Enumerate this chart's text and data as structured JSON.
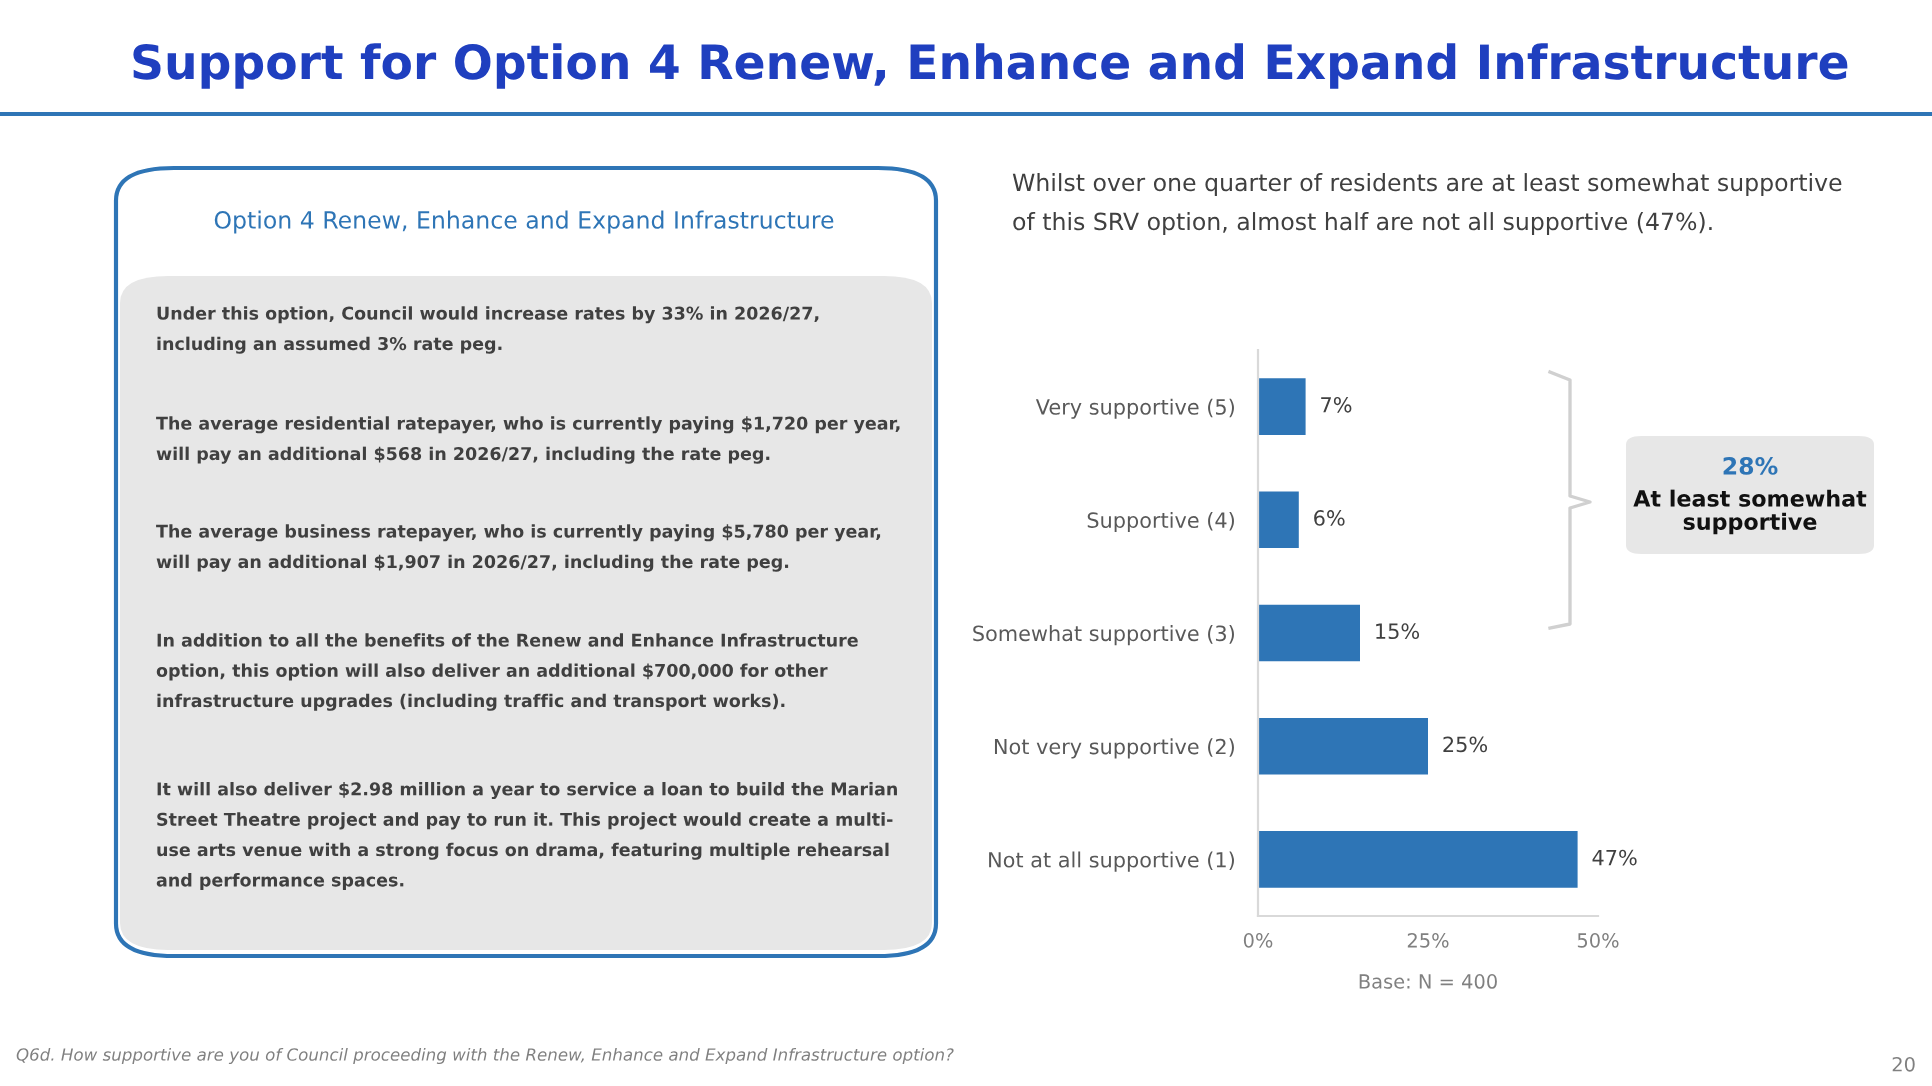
{
  "chart_data": {
    "type": "bar",
    "orientation": "horizontal",
    "title": "Support for Option 4 Renew, Enhance and Expand Infrastructure",
    "subtitle": "Whilst over one quarter of residents are at least somewhat supportive\nof this SRV option, almost half are not all supportive (47%).",
    "xlabel": "Base: N = 400",
    "categories": [
      "Very supportive (5)",
      "Supportive (4)",
      "Somewhat supportive (3)",
      "Not very supportive (2)",
      "Not at all supportive (1)"
    ],
    "values": [
      7,
      6,
      15,
      25,
      47
    ],
    "value_labels": [
      "7%",
      "6%",
      "15%",
      "25%",
      "47%"
    ],
    "color": "#2e75b6",
    "xlim": [
      0,
      50
    ],
    "xticks": [
      {
        "value": 0,
        "label": "0%"
      },
      {
        "value": 25,
        "label": "25%"
      },
      {
        "value": 50,
        "label": "50%"
      }
    ],
    "grid": false,
    "annotations": [
      "Option 4 Renew, Enhance and Expand Infrastructure",
      "Under this option, Council would increase rates by 33% in 2026/27,\nincluding an assumed 3% rate peg.",
      "The average residential ratepayer, who is currently paying $1,720 per year,\nwill pay an additional $568 in 2026/27, including the rate peg.",
      "The average business ratepayer, who is currently paying $5,780 per year,\nwill pay an additional $1,907 in 2026/27, including the rate peg.",
      "In addition to all the benefits of the Renew and Enhance Infrastructure\noption, this option will also deliver an additional $700,000 for other\ninfrastructure upgrades (including traffic and transport works).",
      "It will also deliver $2.98 million a year to service a loan to build the Marian\nStreet Theatre project and pay to run it. This project would create a multi-\nuse arts venue with a strong focus on drama, featuring multiple rehearsal\nand performance spaces.",
      "28%",
      "At least somewhat\nsupportive",
      "Q6d. How supportive are you of Council proceeding with the Renew, Enhance and Expand Infrastructure option?",
      "20"
    ]
  }
}
